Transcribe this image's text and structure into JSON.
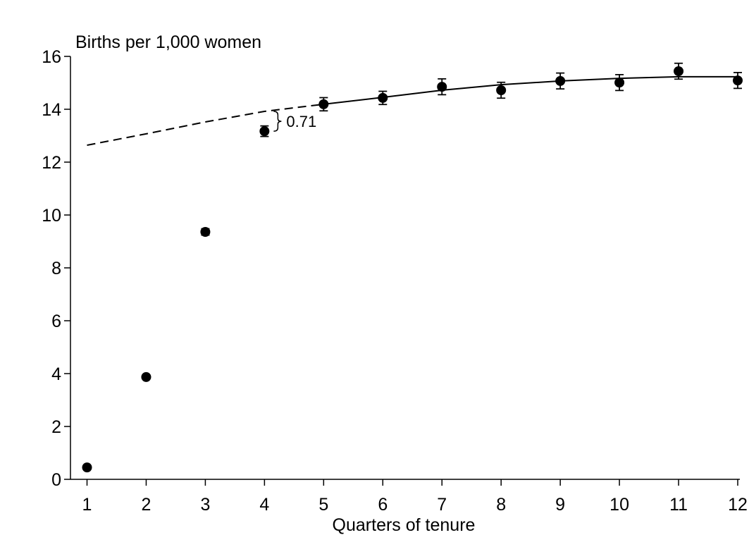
{
  "chart_data": {
    "type": "scatter",
    "ylabel": "Births per 1,000 women",
    "xlabel": "Quarters of tenure",
    "x": [
      1,
      2,
      3,
      4,
      5,
      6,
      7,
      8,
      9,
      10,
      11,
      12
    ],
    "series": [
      {
        "color": "#000000",
        "values": [
          0.45,
          3.87,
          9.36,
          13.17,
          14.19,
          14.43,
          14.85,
          14.72,
          15.07,
          15.01,
          15.44,
          15.09
        ],
        "errors": [
          0.05,
          0.05,
          0.12,
          0.2,
          0.25,
          0.25,
          0.3,
          0.3,
          0.3,
          0.3,
          0.3,
          0.3
        ]
      }
    ],
    "lines": [
      {
        "dashed": true,
        "values": [
          12.64,
          13.07,
          13.52,
          13.92,
          14.19,
          null,
          null,
          null,
          null,
          null,
          null,
          null
        ]
      },
      {
        "dashed": false,
        "values": [
          null,
          null,
          null,
          null,
          14.19,
          14.45,
          14.72,
          14.93,
          15.07,
          15.17,
          15.23,
          15.23
        ]
      }
    ],
    "annotation": {
      "text": "0.71",
      "x_index": 3
    },
    "xlim": [
      0.72,
      12
    ],
    "ylim": [
      0,
      16
    ],
    "xticks": [
      1,
      2,
      3,
      4,
      5,
      6,
      7,
      8,
      9,
      10,
      11,
      12
    ],
    "yticks": [
      0,
      2,
      4,
      6,
      8,
      10,
      12,
      14,
      16
    ]
  }
}
